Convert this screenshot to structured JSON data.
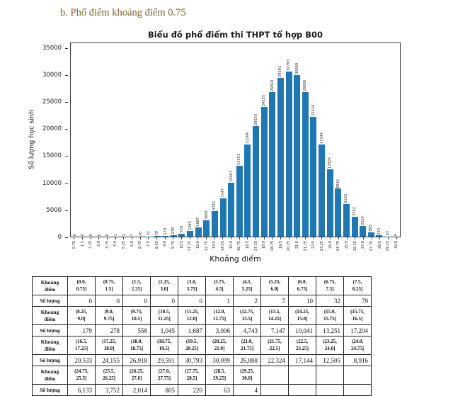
{
  "page": {
    "heading": "b. Phổ điểm khoảng điểm 0.75"
  },
  "chart_data": {
    "type": "bar",
    "title": "Biểu đồ phổ điểm thi THPT tổ hợp B00",
    "xlabel": "Khoảng điểm",
    "ylabel": "Số lượng học sinh",
    "ylim": [
      0,
      36000
    ],
    "yticks": [
      0,
      5000,
      10000,
      15000,
      20000,
      25000,
      30000,
      35000
    ],
    "grid": false,
    "legend": null,
    "bar_color": "#1f77b4",
    "categories": [
      "0.75",
      "1.5",
      "2.25",
      "3.0",
      "3.75",
      "4.5",
      "5.25",
      "6.0",
      "6.75",
      "7.5",
      "8.25",
      "9.0",
      "9.75",
      "10.5",
      "11.25",
      "12.0",
      "12.75",
      "13.5",
      "14.25",
      "15.0",
      "15.75",
      "16.5",
      "17.25",
      "18.0",
      "18.75",
      "19.5",
      "20.25",
      "21.0",
      "21.75",
      "22.5",
      "23.25",
      "24.0",
      "24.75",
      "25.5",
      "26.25",
      "27.0",
      "27.75",
      "28.5",
      "29.25",
      "30.0"
    ],
    "values": [
      0,
      0,
      0,
      0,
      0,
      1,
      2,
      7,
      10,
      32,
      79,
      179,
      278,
      558,
      1045,
      1687,
      3006,
      4743,
      7147,
      10041,
      13251,
      17204,
      20533,
      24155,
      26918,
      29591,
      30793,
      30099,
      26888,
      22324,
      17144,
      12505,
      8916,
      6133,
      3752,
      2014,
      805,
      220,
      63,
      4
    ]
  },
  "table": {
    "range_label": "Khoảng\nđiểm",
    "count_label": "Số lượng",
    "pairs": [
      {
        "ranges": [
          "(0.0,\n0.75]",
          "(0.75,\n1.5]",
          "(1.5,\n2.25]",
          "(2.25,\n3.0]",
          "(3.0,\n3.75]",
          "(3.75,\n4.5]",
          "(4.5,\n5.25]",
          "(5.25,\n6.0]",
          "(6.0,\n6.75]",
          "(6.75,\n7.5]",
          "(7.5,\n8.25]"
        ],
        "counts": [
          "0",
          "0",
          "0",
          "0",
          "0",
          "1",
          "2",
          "7",
          "10",
          "32",
          "79"
        ]
      },
      {
        "ranges": [
          "(8.25,\n9.0]",
          "(9.0,\n9.75]",
          "(9.75,\n10.5]",
          "(10.5,\n11.25]",
          "(11.25,\n12.0]",
          "(12.0,\n12.75]",
          "(12.75,\n13.5]",
          "(13.5,\n14.25]",
          "(14.25,\n15.0]",
          "(15.0,\n15.75]",
          "(15.75,\n16.5]"
        ],
        "counts": [
          "179",
          "278",
          "558",
          "1,045",
          "1,687",
          "3,006",
          "4,743",
          "7,147",
          "10,041",
          "13,251",
          "17,204"
        ]
      },
      {
        "ranges": [
          "(16.5,\n17.25]",
          "(17.25,\n18.0]",
          "(18.0,\n18.75]",
          "(18.75,\n19.5]",
          "(19.5,\n20.25]",
          "(20.25,\n21.0]",
          "(21.0,\n21.75]",
          "(21.75,\n22.5]",
          "(22.5,\n23.25]",
          "(23.25,\n24.0]",
          "(24.0,\n24.75]"
        ],
        "counts": [
          "20,533",
          "24,155",
          "26,918",
          "29,591",
          "30,793",
          "30,099",
          "26,888",
          "22,324",
          "17,144",
          "12,505",
          "8,916"
        ]
      },
      {
        "ranges": [
          "(24.75,\n25.5]",
          "(25.5,\n26.25]",
          "(26.25,\n27.0]",
          "(27.0,\n27.75]",
          "(27.75,\n28.5]",
          "(28.5,\n29.25]",
          "(29.25,\n30.0]",
          "",
          "",
          "",
          ""
        ],
        "counts": [
          "6,133",
          "3,752",
          "2,014",
          "805",
          "220",
          "63",
          "4",
          "",
          "",
          "",
          ""
        ]
      }
    ]
  }
}
